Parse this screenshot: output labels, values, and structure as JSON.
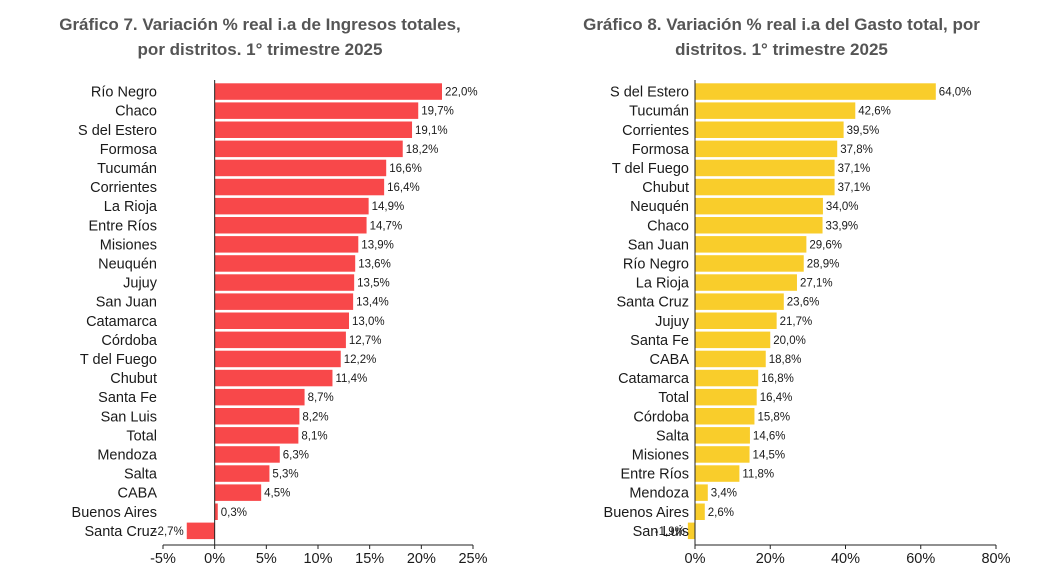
{
  "chart_data": [
    {
      "type": "bar",
      "orientation": "horizontal",
      "title_lines": [
        "Gráfico 7. Variación % real i.a de Ingresos totales,",
        "por distritos. 1° trimestre 2025"
      ],
      "categories": [
        "Río Negro",
        "Chaco",
        "S del Estero",
        "Formosa",
        "Tucumán",
        "Corrientes",
        "La Rioja",
        "Entre Ríos",
        "Misiones",
        "Neuquén",
        "Jujuy",
        "San Juan",
        "Catamarca",
        "Córdoba",
        "T del Fuego",
        "Chubut",
        "Santa Fe",
        "San Luis",
        "Total",
        "Mendoza",
        "Salta",
        "CABA",
        "Buenos Aires",
        "Santa Cruz"
      ],
      "values": [
        22.0,
        19.7,
        19.1,
        18.2,
        16.6,
        16.4,
        14.9,
        14.7,
        13.9,
        13.6,
        13.5,
        13.4,
        13.0,
        12.7,
        12.2,
        11.4,
        8.7,
        8.2,
        8.1,
        6.3,
        5.3,
        4.5,
        0.3,
        -2.7
      ],
      "value_labels": [
        "22,0%",
        "19,7%",
        "19,1%",
        "18,2%",
        "16,6%",
        "16,4%",
        "14,9%",
        "14,7%",
        "13,9%",
        "13,6%",
        "13,5%",
        "13,4%",
        "13,0%",
        "12,7%",
        "12,2%",
        "11,4%",
        "8,7%",
        "8,2%",
        "8,1%",
        "6,3%",
        "5,3%",
        "4,5%",
        "0,3%",
        "-2,7%"
      ],
      "xlim": [
        -5,
        25
      ],
      "xticks": [
        -5,
        0,
        5,
        10,
        15,
        20,
        25
      ],
      "xtick_labels": [
        "-5%",
        "0%",
        "5%",
        "10%",
        "15%",
        "20%",
        "25%"
      ],
      "color": "#f8484a",
      "grid": false,
      "legend": "none"
    },
    {
      "type": "bar",
      "orientation": "horizontal",
      "title_lines": [
        "Gráfico 8. Variación % real i.a del Gasto total, por",
        "distritos. 1° trimestre 2025"
      ],
      "categories": [
        "S del Estero",
        "Tucumán",
        "Corrientes",
        "Formosa",
        "T del Fuego",
        "Chubut",
        "Neuquén",
        "Chaco",
        "San Juan",
        "Río Negro",
        "La Rioja",
        "Santa Cruz",
        "Jujuy",
        "Santa Fe",
        "CABA",
        "Catamarca",
        "Total",
        "Córdoba",
        "Salta",
        "Misiones",
        "Entre Ríos",
        "Mendoza",
        "Buenos Aires",
        "San Luis"
      ],
      "values": [
        64.0,
        42.6,
        39.5,
        37.8,
        37.1,
        37.1,
        34.0,
        33.9,
        29.6,
        28.9,
        27.1,
        23.6,
        21.7,
        20.0,
        18.8,
        16.8,
        16.4,
        15.8,
        14.6,
        14.5,
        11.8,
        3.4,
        2.6,
        -1.9
      ],
      "value_labels": [
        "64,0%",
        "42,6%",
        "39,5%",
        "37,8%",
        "37,1%",
        "37,1%",
        "34,0%",
        "33,9%",
        "29,6%",
        "28,9%",
        "27,1%",
        "23,6%",
        "21,7%",
        "20,0%",
        "18,8%",
        "16,8%",
        "16,4%",
        "15,8%",
        "14,6%",
        "14,5%",
        "11,8%",
        "3,4%",
        "2,6%",
        "-1,9%"
      ],
      "xlim": [
        0,
        80
      ],
      "xticks": [
        0,
        20,
        40,
        60,
        80
      ],
      "xtick_labels": [
        "0%",
        "20%",
        "40%",
        "60%",
        "80%"
      ],
      "color": "#f9cd2b",
      "grid": false,
      "legend": "none"
    }
  ]
}
